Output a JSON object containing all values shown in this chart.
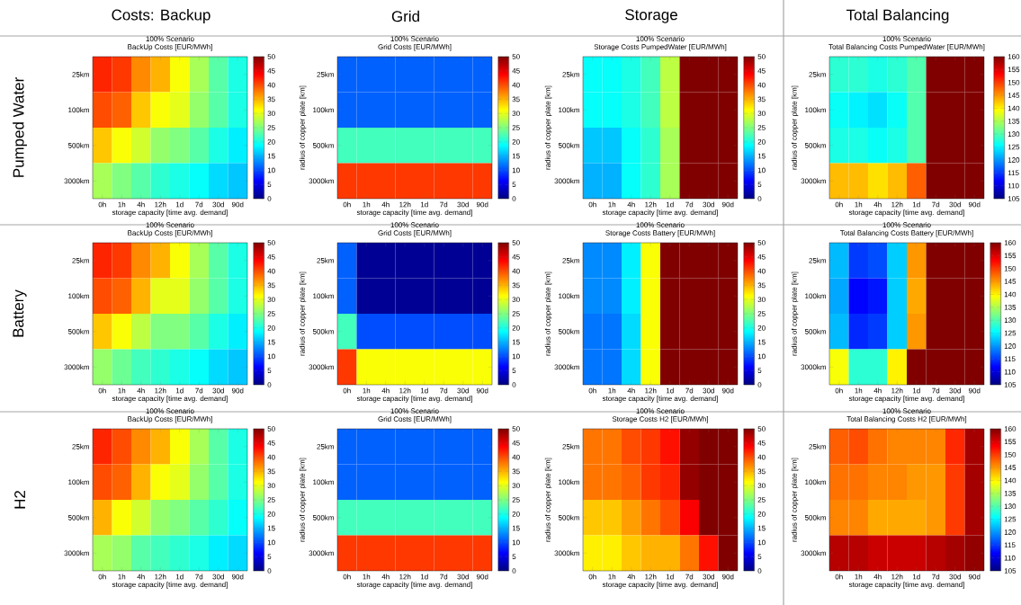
{
  "chart_data": [
    {
      "type": "heatmap",
      "title": "100% Scenario",
      "subtitle": "BackUp Costs [EUR/MWh]",
      "xlabel": "storage capacity [time avg. demand]",
      "categories": [
        "0h",
        "1h",
        "4h",
        "12h",
        "1d",
        "7d",
        "30d",
        "90d"
      ],
      "y_categories": [
        "25km",
        "100km",
        "500km",
        "3000km"
      ],
      "cells": [
        [
          42,
          41,
          37,
          35,
          31,
          27,
          23,
          20
        ],
        [
          40,
          39,
          34,
          31,
          30,
          26,
          23,
          20
        ],
        [
          34,
          31,
          29,
          26,
          25,
          23,
          20,
          18
        ],
        [
          27,
          25,
          23,
          21,
          20,
          19,
          17,
          16
        ]
      ],
      "clim": [
        0,
        50
      ],
      "cticks": [
        0,
        5,
        10,
        15,
        20,
        25,
        30,
        35,
        40,
        45,
        50
      ],
      "annotations": [
        "Costs: Backup",
        "Pumped Water"
      ]
    },
    {
      "type": "heatmap",
      "title": "100% Scenario",
      "subtitle": "Grid Costs [EUR/MWh]",
      "xlabel": "storage capacity [time avg. demand]",
      "ylabel": "radius of copper plate [km]",
      "categories": [
        "0h",
        "1h",
        "4h",
        "12h",
        "1d",
        "7d",
        "30d",
        "90d"
      ],
      "y_categories": [
        "25km",
        "100km",
        "500km",
        "3000km"
      ],
      "cells": [
        [
          11,
          11,
          11,
          11,
          11,
          11,
          11,
          11
        ],
        [
          11,
          11,
          11,
          11,
          11,
          11,
          11,
          11
        ],
        [
          22,
          22,
          22,
          22,
          22,
          22,
          22,
          22
        ],
        [
          41,
          41,
          41,
          41,
          41,
          41,
          41,
          41
        ]
      ],
      "clim": [
        0,
        50
      ],
      "cticks": [
        0,
        5,
        10,
        15,
        20,
        25,
        30,
        35,
        40,
        45,
        50
      ],
      "annotations": [
        "Grid"
      ]
    },
    {
      "type": "heatmap",
      "title": "100% Scenario",
      "subtitle": "Storage Costs PumpedWater [EUR/MWh]",
      "xlabel": "storage capacity [time avg. demand]",
      "ylabel": "radius of copper plate [km]",
      "categories": [
        "0h",
        "1h",
        "4h",
        "12h",
        "1d",
        "7d",
        "30d",
        "90d"
      ],
      "y_categories": [
        "25km",
        "100km",
        "500km",
        "3000km"
      ],
      "cells": [
        [
          19,
          19,
          20,
          22,
          28,
          50,
          50,
          50
        ],
        [
          19,
          19,
          20,
          22,
          28,
          50,
          50,
          50
        ],
        [
          16,
          16,
          19,
          21,
          27,
          50,
          50,
          50
        ],
        [
          15,
          15,
          19,
          21,
          27,
          50,
          50,
          50
        ]
      ],
      "clim": [
        0,
        50
      ],
      "cticks": [
        0,
        5,
        10,
        15,
        20,
        25,
        30,
        35,
        40,
        45,
        50
      ],
      "annotations": [
        "Storage"
      ]
    },
    {
      "type": "heatmap",
      "title": "100% Scenario",
      "subtitle": "Total Balancing Costs PumpedWater [EUR/MWh]",
      "xlabel": "storage capacity [time avg. demand]",
      "ylabel": "radius of copper plate [km]",
      "categories": [
        "0h",
        "1h",
        "4h",
        "12h",
        "1d",
        "7d",
        "30d",
        "90d"
      ],
      "y_categories": [
        "25km",
        "100km",
        "500km",
        "3000km"
      ],
      "cells": [
        [
          128,
          128,
          127,
          128,
          130,
          160,
          160,
          160
        ],
        [
          126,
          125,
          124,
          126,
          130,
          160,
          160,
          160
        ],
        [
          127,
          127,
          126,
          127,
          130,
          160,
          160,
          160
        ],
        [
          143,
          143,
          141,
          143,
          148,
          160,
          160,
          160
        ]
      ],
      "clim": [
        105,
        160
      ],
      "cticks": [
        105,
        110,
        115,
        120,
        125,
        130,
        135,
        140,
        145,
        150,
        155,
        160
      ],
      "annotations": [
        "Total Balancing"
      ]
    },
    {
      "type": "heatmap",
      "title": "100% Scenario",
      "subtitle": "BackUp Costs [EUR/MWh]",
      "xlabel": "storage capacity [time avg. demand]",
      "categories": [
        "0h",
        "1h",
        "4h",
        "12h",
        "1d",
        "7d",
        "30d",
        "90d"
      ],
      "y_categories": [
        "25km",
        "100km",
        "500km",
        "3000km"
      ],
      "cells": [
        [
          42,
          41,
          37,
          35,
          31,
          27,
          23,
          20
        ],
        [
          40,
          39,
          35,
          30,
          30,
          26,
          23,
          20
        ],
        [
          34,
          31,
          28,
          25,
          25,
          23,
          20,
          18
        ],
        [
          26,
          24,
          22,
          21,
          20,
          19,
          17,
          16
        ]
      ],
      "clim": [
        0,
        50
      ],
      "cticks": [
        0,
        5,
        10,
        15,
        20,
        25,
        30,
        35,
        40,
        45,
        50
      ],
      "annotations": [
        "Battery"
      ]
    },
    {
      "type": "heatmap",
      "title": "100% Scenario",
      "subtitle": "Grid Costs [EUR/MWh]",
      "xlabel": "storage capacity [time avg. demand]",
      "ylabel": "radius of copper plate [km]",
      "categories": [
        "0h",
        "1h",
        "4h",
        "12h",
        "1d",
        "7d",
        "30d",
        "90d"
      ],
      "y_categories": [
        "25km",
        "100km",
        "500km",
        "3000km"
      ],
      "cells": [
        [
          11,
          1,
          1,
          1,
          1,
          1,
          1,
          1
        ],
        [
          11,
          1,
          1,
          1,
          1,
          1,
          1,
          1
        ],
        [
          22,
          10,
          10,
          10,
          10,
          10,
          10,
          10
        ],
        [
          41,
          31,
          31,
          31,
          31,
          31,
          31,
          31
        ]
      ],
      "clim": [
        0,
        50
      ],
      "cticks": [
        0,
        5,
        10,
        15,
        20,
        25,
        30,
        35,
        40,
        45,
        50
      ]
    },
    {
      "type": "heatmap",
      "title": "100% Scenario",
      "subtitle": "Storage Costs Battery [EUR/MWh]",
      "xlabel": "storage capacity [time avg. demand]",
      "ylabel": "radius of copper plate [km]",
      "categories": [
        "0h",
        "1h",
        "4h",
        "12h",
        "1d",
        "7d",
        "30d",
        "90d"
      ],
      "y_categories": [
        "25km",
        "100km",
        "500km",
        "3000km"
      ],
      "cells": [
        [
          13,
          13,
          18,
          31,
          50,
          50,
          50,
          50
        ],
        [
          13,
          13,
          18,
          31,
          50,
          50,
          50,
          50
        ],
        [
          12,
          12,
          17,
          31,
          50,
          50,
          50,
          50
        ],
        [
          12,
          12,
          17,
          31,
          50,
          50,
          50,
          50
        ]
      ],
      "clim": [
        0,
        50
      ],
      "cticks": [
        0,
        5,
        10,
        15,
        20,
        25,
        30,
        35,
        40,
        45,
        50
      ]
    },
    {
      "type": "heatmap",
      "title": "100% Scenario",
      "subtitle": "Total Balancing Costs Battery [EUR/MWh]",
      "xlabel": "storage capacity [time avg. demand]",
      "ylabel": "radius of copper plate [km]",
      "categories": [
        "0h",
        "1h",
        "4h",
        "12h",
        "1d",
        "7d",
        "30d",
        "90d"
      ],
      "y_categories": [
        "25km",
        "100km",
        "500km",
        "3000km"
      ],
      "cells": [
        [
          122,
          115,
          116,
          123,
          145,
          160,
          160,
          160
        ],
        [
          121,
          112,
          113,
          123,
          144,
          160,
          160,
          160
        ],
        [
          122,
          114,
          115,
          123,
          145,
          160,
          160,
          160
        ],
        [
          139,
          128,
          128,
          140,
          160,
          160,
          160,
          160
        ]
      ],
      "clim": [
        105,
        160
      ],
      "cticks": [
        105,
        110,
        115,
        120,
        125,
        130,
        135,
        140,
        145,
        150,
        155,
        160
      ]
    },
    {
      "type": "heatmap",
      "title": "100% Scenario",
      "subtitle": "BackUp Costs [EUR/MWh]",
      "xlabel": "storage capacity [time avg. demand]",
      "categories": [
        "0h",
        "1h",
        "4h",
        "12h",
        "1d",
        "7d",
        "30d",
        "90d"
      ],
      "y_categories": [
        "25km",
        "100km",
        "500km",
        "3000km"
      ],
      "cells": [
        [
          42,
          40,
          37,
          35,
          31,
          27,
          23,
          20
        ],
        [
          40,
          39,
          35,
          31,
          30,
          26,
          23,
          20
        ],
        [
          35,
          31,
          29,
          26,
          25,
          23,
          21,
          19
        ],
        [
          27,
          26,
          23,
          22,
          21,
          20,
          18,
          17
        ]
      ],
      "clim": [
        0,
        50
      ],
      "cticks": [
        0,
        5,
        10,
        15,
        20,
        25,
        30,
        35,
        40,
        45,
        50
      ],
      "annotations": [
        "H2"
      ]
    },
    {
      "type": "heatmap",
      "title": "100% Scenario",
      "subtitle": "Grid Costs [EUR/MWh]",
      "xlabel": "storage capacity [time avg. demand]",
      "ylabel": "radius of copper plate [km]",
      "categories": [
        "0h",
        "1h",
        "4h",
        "12h",
        "1d",
        "7d",
        "30d",
        "90d"
      ],
      "y_categories": [
        "25km",
        "100km",
        "500km",
        "3000km"
      ],
      "cells": [
        [
          11,
          11,
          11,
          11,
          11,
          11,
          11,
          11
        ],
        [
          11,
          11,
          11,
          11,
          11,
          11,
          11,
          11
        ],
        [
          22,
          22,
          22,
          22,
          22,
          22,
          22,
          22
        ],
        [
          41,
          41,
          41,
          41,
          41,
          41,
          41,
          41
        ]
      ],
      "clim": [
        0,
        50
      ],
      "cticks": [
        0,
        5,
        10,
        15,
        20,
        25,
        30,
        35,
        40,
        45,
        50
      ]
    },
    {
      "type": "heatmap",
      "title": "100% Scenario",
      "subtitle": "Storage Costs H2 [EUR/MWh]",
      "xlabel": "storage capacity [time avg. demand]",
      "ylabel": "radius of copper plate [km]",
      "categories": [
        "0h",
        "1h",
        "4h",
        "12h",
        "1d",
        "7d",
        "30d",
        "90d"
      ],
      "y_categories": [
        "25km",
        "100km",
        "500km",
        "3000km"
      ],
      "cells": [
        [
          38,
          38,
          40,
          41,
          43,
          49,
          50,
          50
        ],
        [
          38,
          38,
          39,
          41,
          42,
          49,
          50,
          50
        ],
        [
          34,
          34,
          36,
          38,
          40,
          44,
          50,
          50
        ],
        [
          32,
          32,
          34,
          35,
          35,
          38,
          43,
          50
        ]
      ],
      "clim": [
        0,
        50
      ],
      "cticks": [
        0,
        5,
        10,
        15,
        20,
        25,
        30,
        35,
        40,
        45,
        50
      ]
    },
    {
      "type": "heatmap",
      "title": "100% Scenario",
      "subtitle": "Total Balancing Costs H2 [EUR/MWh]",
      "xlabel": "storage capacity [time avg. demand]",
      "ylabel": "radius of copper plate [km]",
      "categories": [
        "0h",
        "1h",
        "4h",
        "12h",
        "1d",
        "7d",
        "30d",
        "90d"
      ],
      "y_categories": [
        "25km",
        "100km",
        "500km",
        "3000km"
      ],
      "cells": [
        [
          148,
          149,
          147,
          146,
          146,
          146,
          151,
          158
        ],
        [
          147,
          147,
          146,
          146,
          145,
          145,
          150,
          158
        ],
        [
          146,
          146,
          144,
          144,
          144,
          145,
          150,
          158
        ],
        [
          157,
          157,
          156,
          156,
          156,
          157,
          158,
          159
        ]
      ],
      "clim": [
        105,
        160
      ],
      "cticks": [
        105,
        110,
        115,
        120,
        125,
        130,
        135,
        140,
        145,
        150,
        155,
        160
      ]
    }
  ]
}
